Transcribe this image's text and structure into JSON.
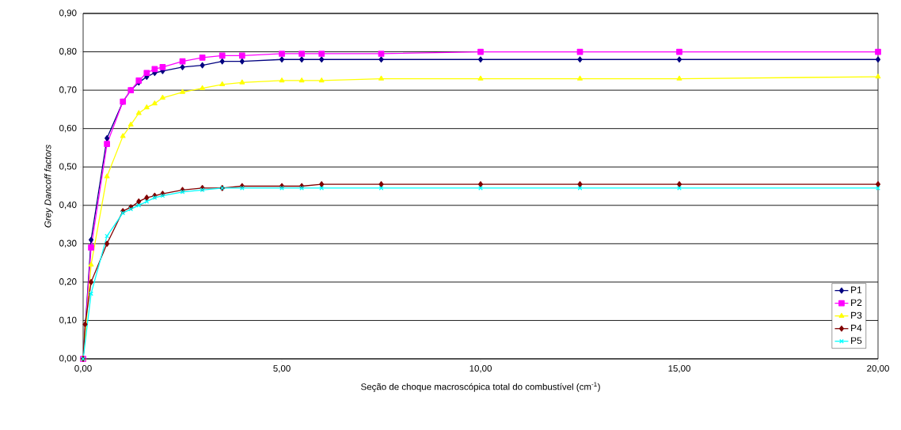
{
  "chart_data": {
    "type": "line",
    "xlabel": "Seção de choque macroscópica total do combustível (cm$^{-1}$)",
    "ylabel": "Grey Dancoff factors",
    "xlim": [
      0,
      20
    ],
    "ylim": [
      0,
      0.9
    ],
    "xticks": [
      {
        "value": 0,
        "label": "0,00"
      },
      {
        "value": 5,
        "label": "5,00"
      },
      {
        "value": 10,
        "label": "10,00"
      },
      {
        "value": 15,
        "label": "15,00"
      },
      {
        "value": 20,
        "label": "20,00"
      }
    ],
    "yticks": [
      {
        "value": 0,
        "label": "0,00"
      },
      {
        "value": 0.1,
        "label": "0,10"
      },
      {
        "value": 0.2,
        "label": "0,20"
      },
      {
        "value": 0.3,
        "label": "0,30"
      },
      {
        "value": 0.4,
        "label": "0,40"
      },
      {
        "value": 0.5,
        "label": "0,50"
      },
      {
        "value": 0.6,
        "label": "0,60"
      },
      {
        "value": 0.7,
        "label": "0,70"
      },
      {
        "value": 0.8,
        "label": "0,80"
      },
      {
        "value": 0.9,
        "label": "0,90"
      }
    ],
    "grid": "y",
    "legend": "bottom right",
    "series": [
      {
        "name": "P1",
        "color": "#000080",
        "marker": "diamond",
        "x": [
          0,
          0.2,
          0.6,
          1.0,
          1.2,
          1.4,
          1.6,
          1.8,
          2.0,
          2.5,
          3.0,
          3.5,
          4,
          5,
          5.5,
          6,
          7.5,
          10,
          12.5,
          15,
          20
        ],
        "values": [
          0,
          0.31,
          0.575,
          0.67,
          0.7,
          0.72,
          0.735,
          0.745,
          0.75,
          0.76,
          0.765,
          0.775,
          0.775,
          0.78,
          0.78,
          0.78,
          0.78,
          0.78,
          0.78,
          0.78,
          0.78
        ]
      },
      {
        "name": "P2",
        "color": "#ff00ff",
        "marker": "square",
        "x": [
          0,
          0.2,
          0.6,
          1.0,
          1.2,
          1.4,
          1.6,
          1.8,
          2.0,
          2.5,
          3.0,
          3.5,
          4,
          5,
          5.5,
          6,
          7.5,
          10,
          12.5,
          15,
          20
        ],
        "values": [
          0,
          0.29,
          0.56,
          0.67,
          0.7,
          0.725,
          0.745,
          0.755,
          0.76,
          0.775,
          0.785,
          0.79,
          0.79,
          0.795,
          0.795,
          0.795,
          0.795,
          0.8,
          0.8,
          0.8,
          0.8
        ]
      },
      {
        "name": "P3",
        "color": "#ffff00",
        "marker": "triangle",
        "x": [
          0,
          0.2,
          0.6,
          1.0,
          1.2,
          1.4,
          1.6,
          1.8,
          2.0,
          2.5,
          3.0,
          3.5,
          4,
          5,
          5.5,
          6,
          7.5,
          10,
          12.5,
          15,
          20
        ],
        "values": [
          0,
          0.245,
          0.475,
          0.58,
          0.61,
          0.64,
          0.655,
          0.665,
          0.68,
          0.695,
          0.705,
          0.715,
          0.72,
          0.725,
          0.725,
          0.725,
          0.73,
          0.73,
          0.73,
          0.73,
          0.735
        ]
      },
      {
        "name": "P4",
        "color": "#800000",
        "marker": "diamond",
        "x": [
          0,
          0.05,
          0.2,
          0.6,
          1.0,
          1.2,
          1.4,
          1.6,
          1.8,
          2.0,
          2.5,
          3.0,
          3.5,
          4,
          5,
          5.5,
          6,
          7.5,
          10,
          12.5,
          15,
          20
        ],
        "values": [
          0,
          0.09,
          0.2,
          0.3,
          0.385,
          0.395,
          0.41,
          0.42,
          0.425,
          0.43,
          0.44,
          0.445,
          0.445,
          0.45,
          0.45,
          0.45,
          0.455,
          0.455,
          0.455,
          0.455,
          0.455,
          0.455
        ]
      },
      {
        "name": "P5",
        "color": "#00ffff",
        "marker": "cross",
        "x": [
          0,
          0.2,
          0.6,
          1.0,
          1.2,
          1.4,
          1.6,
          1.8,
          2.0,
          2.5,
          3.0,
          3.5,
          4,
          5,
          5.5,
          6,
          7.5,
          10,
          12.5,
          15,
          20
        ],
        "values": [
          0,
          0.17,
          0.32,
          0.38,
          0.39,
          0.4,
          0.41,
          0.42,
          0.425,
          0.435,
          0.44,
          0.445,
          0.445,
          0.445,
          0.445,
          0.445,
          0.445,
          0.445,
          0.445,
          0.445,
          0.445
        ]
      }
    ]
  }
}
